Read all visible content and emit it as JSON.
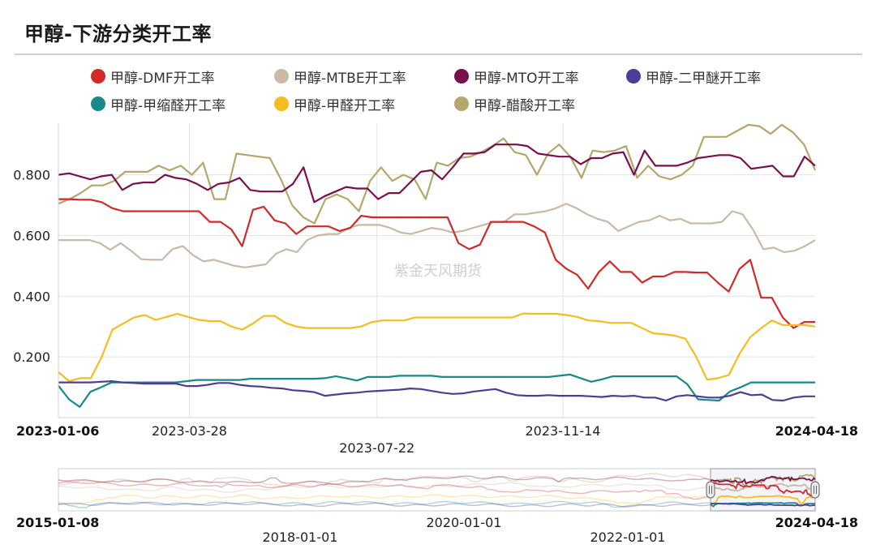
{
  "title": "甲醇-下游分类开工率",
  "watermark": "紫金天风期货",
  "chart_data": {
    "type": "line",
    "y_ticks": [
      "0.800",
      "0.600",
      "0.400",
      "0.200"
    ],
    "y_tick_values": [
      0.8,
      0.6,
      0.4,
      0.2
    ],
    "ylim": [
      0.0,
      0.97
    ],
    "x_range": [
      "2023-01-06",
      "2024-04-18"
    ],
    "x_ticks": [
      {
        "date": "2023-01-06",
        "label": "2023-01-06",
        "bold": true,
        "row": 1
      },
      {
        "date": "2023-03-28",
        "label": "2023-03-28",
        "bold": false,
        "row": 1
      },
      {
        "date": "2023-07-22",
        "label": "2023-07-22",
        "bold": false,
        "row": 2
      },
      {
        "date": "2023-11-14",
        "label": "2023-11-14",
        "bold": false,
        "row": 1
      },
      {
        "date": "2024-04-18",
        "label": "2024-04-18",
        "bold": true,
        "row": 1
      }
    ],
    "grid_x_dates": [
      "2023-03-28",
      "2023-07-22",
      "2023-11-14"
    ],
    "grid": true,
    "legend_position": "top",
    "series": [
      {
        "name": "甲醇-DMF开工率",
        "color": "#d12a2a",
        "values": [
          0.72,
          0.72,
          0.718,
          0.718,
          0.71,
          0.69,
          0.68,
          0.68,
          0.68,
          0.68,
          0.68,
          0.68,
          0.68,
          0.68,
          0.645,
          0.645,
          0.62,
          0.565,
          0.685,
          0.695,
          0.65,
          0.64,
          0.605,
          0.63,
          0.63,
          0.63,
          0.615,
          0.625,
          0.665,
          0.66,
          0.66,
          0.66,
          0.66,
          0.66,
          0.66,
          0.66,
          0.66,
          0.575,
          0.555,
          0.57,
          0.645,
          0.645,
          0.645,
          0.645,
          0.63,
          0.61,
          0.52,
          0.49,
          0.47,
          0.425,
          0.48,
          0.515,
          0.48,
          0.48,
          0.445,
          0.465,
          0.465,
          0.48,
          0.48,
          0.478,
          0.478,
          0.445,
          0.415,
          0.49,
          0.52,
          0.395,
          0.395,
          0.33,
          0.295,
          0.315,
          0.315
        ]
      },
      {
        "name": "甲醇-MTBE开工率",
        "color": "#c9b9a6",
        "values": [
          0.585,
          0.585,
          0.585,
          0.585,
          0.575,
          0.553,
          0.575,
          0.55,
          0.522,
          0.52,
          0.52,
          0.555,
          0.565,
          0.535,
          0.515,
          0.52,
          0.51,
          0.5,
          0.495,
          0.5,
          0.505,
          0.54,
          0.555,
          0.545,
          0.585,
          0.6,
          0.605,
          0.605,
          0.625,
          0.635,
          0.635,
          0.635,
          0.625,
          0.61,
          0.605,
          0.615,
          0.625,
          0.62,
          0.61,
          0.615,
          0.625,
          0.635,
          0.645,
          0.645,
          0.67,
          0.67,
          0.675,
          0.68,
          0.69,
          0.705,
          0.69,
          0.67,
          0.655,
          0.645,
          0.615,
          0.63,
          0.645,
          0.65,
          0.665,
          0.65,
          0.655,
          0.64,
          0.64,
          0.64,
          0.645,
          0.68,
          0.67,
          0.62,
          0.555,
          0.56,
          0.545,
          0.55,
          0.565,
          0.585
        ]
      },
      {
        "name": "甲醇-MTO开工率",
        "color": "#7a0f4e",
        "values": [
          0.8,
          0.805,
          0.795,
          0.785,
          0.795,
          0.8,
          0.75,
          0.77,
          0.775,
          0.775,
          0.8,
          0.79,
          0.785,
          0.77,
          0.75,
          0.77,
          0.775,
          0.79,
          0.75,
          0.745,
          0.745,
          0.745,
          0.77,
          0.825,
          0.71,
          0.73,
          0.745,
          0.76,
          0.755,
          0.755,
          0.72,
          0.74,
          0.74,
          0.775,
          0.81,
          0.815,
          0.785,
          0.825,
          0.87,
          0.87,
          0.875,
          0.9,
          0.9,
          0.9,
          0.895,
          0.87,
          0.865,
          0.86,
          0.86,
          0.835,
          0.855,
          0.855,
          0.87,
          0.875,
          0.8,
          0.88,
          0.83,
          0.83,
          0.83,
          0.84,
          0.855,
          0.86,
          0.865,
          0.865,
          0.855,
          0.82,
          0.825,
          0.83,
          0.795,
          0.795,
          0.86,
          0.83
        ]
      },
      {
        "name": "甲醇-二甲醚开工率",
        "color": "#4e3d94",
        "values": [
          0.116,
          0.116,
          0.116,
          0.116,
          0.118,
          0.12,
          0.116,
          0.114,
          0.112,
          0.112,
          0.112,
          0.112,
          0.104,
          0.104,
          0.108,
          0.114,
          0.114,
          0.108,
          0.104,
          0.102,
          0.098,
          0.096,
          0.09,
          0.088,
          0.084,
          0.072,
          0.076,
          0.08,
          0.082,
          0.086,
          0.088,
          0.09,
          0.092,
          0.096,
          0.094,
          0.088,
          0.082,
          0.078,
          0.08,
          0.086,
          0.09,
          0.094,
          0.082,
          0.074,
          0.072,
          0.072,
          0.074,
          0.072,
          0.072,
          0.072,
          0.07,
          0.068,
          0.072,
          0.07,
          0.072,
          0.066,
          0.066,
          0.056,
          0.07,
          0.074,
          0.07,
          0.066,
          0.066,
          0.072,
          0.084,
          0.074,
          0.076,
          0.058,
          0.056,
          0.066,
          0.07,
          0.07
        ]
      },
      {
        "name": "甲醇-甲缩醛开工率",
        "color": "#168a8a",
        "values": [
          0.105,
          0.06,
          0.035,
          0.085,
          0.1,
          0.116,
          0.116,
          0.116,
          0.116,
          0.116,
          0.116,
          0.116,
          0.12,
          0.124,
          0.124,
          0.124,
          0.124,
          0.124,
          0.128,
          0.128,
          0.128,
          0.128,
          0.128,
          0.128,
          0.128,
          0.13,
          0.136,
          0.13,
          0.122,
          0.134,
          0.134,
          0.134,
          0.138,
          0.138,
          0.138,
          0.138,
          0.134,
          0.134,
          0.134,
          0.134,
          0.134,
          0.134,
          0.134,
          0.134,
          0.134,
          0.134,
          0.134,
          0.138,
          0.142,
          0.13,
          0.118,
          0.126,
          0.136,
          0.136,
          0.136,
          0.136,
          0.136,
          0.136,
          0.136,
          0.11,
          0.06,
          0.058,
          0.056,
          0.086,
          0.1,
          0.116,
          0.116,
          0.116,
          0.116,
          0.116,
          0.116,
          0.116
        ]
      },
      {
        "name": "甲醇-甲醛开工率",
        "color": "#f5bd1f",
        "values": [
          0.15,
          0.12,
          0.13,
          0.13,
          0.2,
          0.29,
          0.31,
          0.33,
          0.338,
          0.322,
          0.332,
          0.342,
          0.332,
          0.322,
          0.318,
          0.318,
          0.3,
          0.29,
          0.31,
          0.335,
          0.335,
          0.312,
          0.3,
          0.295,
          0.295,
          0.295,
          0.295,
          0.295,
          0.3,
          0.315,
          0.32,
          0.32,
          0.32,
          0.33,
          0.33,
          0.33,
          0.33,
          0.33,
          0.33,
          0.33,
          0.33,
          0.33,
          0.33,
          0.343,
          0.342,
          0.342,
          0.342,
          0.338,
          0.332,
          0.32,
          0.318,
          0.312,
          0.312,
          0.312,
          0.295,
          0.278,
          0.275,
          0.27,
          0.26,
          0.2,
          0.125,
          0.13,
          0.14,
          0.21,
          0.265,
          0.295,
          0.32,
          0.305,
          0.305,
          0.305,
          0.3
        ]
      },
      {
        "name": "甲醇-醋酸开工率",
        "color": "#b3a76b",
        "values": [
          0.705,
          0.72,
          0.74,
          0.765,
          0.765,
          0.78,
          0.81,
          0.81,
          0.81,
          0.83,
          0.815,
          0.83,
          0.8,
          0.84,
          0.72,
          0.72,
          0.87,
          0.865,
          0.86,
          0.855,
          0.785,
          0.7,
          0.66,
          0.64,
          0.72,
          0.735,
          0.72,
          0.68,
          0.78,
          0.825,
          0.78,
          0.8,
          0.785,
          0.72,
          0.84,
          0.83,
          0.855,
          0.86,
          0.875,
          0.895,
          0.92,
          0.875,
          0.865,
          0.8,
          0.87,
          0.9,
          0.86,
          0.79,
          0.88,
          0.875,
          0.88,
          0.895,
          0.79,
          0.83,
          0.795,
          0.785,
          0.8,
          0.83,
          0.925,
          0.925,
          0.925,
          0.945,
          0.965,
          0.96,
          0.935,
          0.965,
          0.94,
          0.9,
          0.815
        ]
      }
    ]
  },
  "navigator": {
    "start_label": "2015-01-08",
    "end_label": "2024-04-18",
    "ticks": [
      "2018-01-01",
      "2020-01-01",
      "2022-01-01"
    ]
  }
}
